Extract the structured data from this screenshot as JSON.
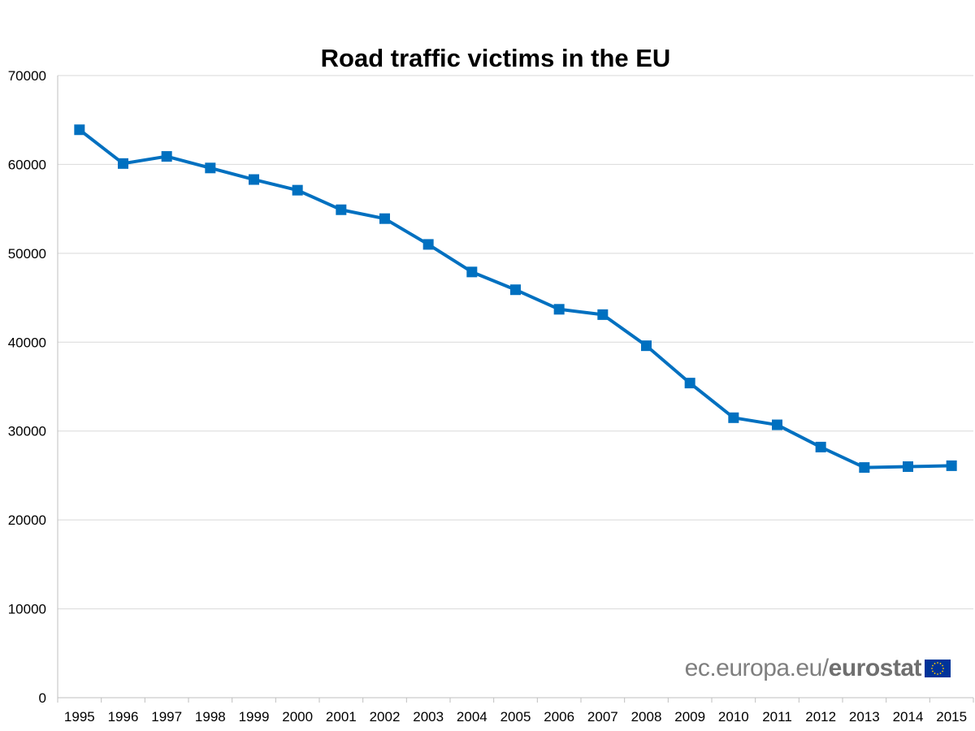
{
  "chart_data": {
    "type": "line",
    "title": "Road traffic victims in the EU",
    "xlabel": "",
    "ylabel": "",
    "categories": [
      "1995",
      "1996",
      "1997",
      "1998",
      "1999",
      "2000",
      "2001",
      "2002",
      "2003",
      "2004",
      "2005",
      "2006",
      "2007",
      "2008",
      "2009",
      "2010",
      "2011",
      "2012",
      "2013",
      "2014",
      "2015"
    ],
    "series": [
      {
        "name": "Road traffic victims",
        "values": [
          63900,
          60100,
          60900,
          59600,
          58300,
          57100,
          54900,
          53900,
          51000,
          47900,
          45900,
          43700,
          43100,
          39600,
          35400,
          31500,
          30700,
          28200,
          25900,
          26000,
          26100
        ],
        "color": "#0070c0"
      }
    ],
    "ylim": [
      0,
      70000
    ],
    "yticks": [
      0,
      10000,
      20000,
      30000,
      40000,
      50000,
      60000,
      70000
    ],
    "grid": true,
    "marker": "square"
  },
  "source": {
    "prefix": "ec.europa.eu/",
    "brand": "eurostat",
    "flag_icon": "eu-flag-icon"
  }
}
